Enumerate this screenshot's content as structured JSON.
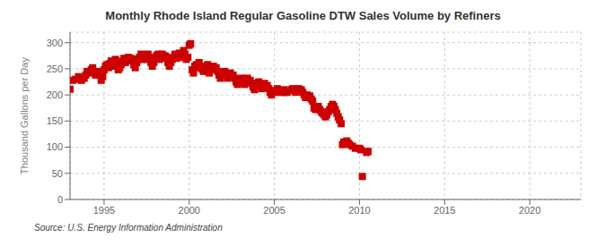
{
  "chart_data": {
    "type": "scatter",
    "title": "Monthly Rhode Island Regular Gasoline DTW Sales Volume by Refiners",
    "ylabel": "Thousand Gallons per Day",
    "annotations": [
      "Source: U.S. Energy Information Administration"
    ],
    "color": "#cc0000",
    "marker": "square",
    "grid": true,
    "xlim": [
      1993.0,
      2023.0
    ],
    "ylim": [
      0,
      320
    ],
    "xticks": [
      1995,
      2000,
      2005,
      2010,
      2015,
      2020
    ],
    "yticks": [
      0,
      50,
      100,
      150,
      200,
      250,
      300
    ],
    "x": [
      1993.0,
      1993.17,
      1993.33,
      1993.5,
      1993.67,
      1993.83,
      1993.92,
      1994.0,
      1994.17,
      1994.25,
      1994.33,
      1994.5,
      1994.67,
      1994.75,
      1994.83,
      1994.92,
      1995.0,
      1995.08,
      1995.17,
      1995.25,
      1995.33,
      1995.42,
      1995.5,
      1995.58,
      1995.67,
      1995.75,
      1995.83,
      1995.92,
      1996.0,
      1996.08,
      1996.17,
      1996.25,
      1996.33,
      1996.42,
      1996.5,
      1996.58,
      1996.67,
      1996.75,
      1996.83,
      1996.92,
      1997.0,
      1997.08,
      1997.17,
      1997.25,
      1997.33,
      1997.42,
      1997.5,
      1997.58,
      1997.67,
      1997.75,
      1997.83,
      1997.92,
      1998.0,
      1998.08,
      1998.17,
      1998.25,
      1998.33,
      1998.42,
      1998.5,
      1998.58,
      1998.67,
      1998.75,
      1998.83,
      1998.92,
      1999.0,
      1999.08,
      1999.17,
      1999.25,
      1999.33,
      1999.42,
      1999.5,
      1999.58,
      1999.67,
      1999.75,
      1999.83,
      1999.92,
      2000.0,
      2000.08,
      2000.17,
      2000.25,
      2000.33,
      2000.42,
      2000.5,
      2000.58,
      2000.67,
      2000.75,
      2000.83,
      2000.92,
      2001.0,
      2001.08,
      2001.17,
      2001.25,
      2001.33,
      2001.42,
      2001.5,
      2001.58,
      2001.67,
      2001.75,
      2001.83,
      2001.92,
      2002.0,
      2002.08,
      2002.17,
      2002.25,
      2002.33,
      2002.42,
      2002.5,
      2002.58,
      2002.67,
      2002.75,
      2002.83,
      2002.92,
      2003.0,
      2003.08,
      2003.17,
      2003.25,
      2003.33,
      2003.42,
      2003.5,
      2003.58,
      2003.67,
      2003.75,
      2003.83,
      2003.92,
      2004.0,
      2004.08,
      2004.17,
      2004.25,
      2004.33,
      2004.42,
      2004.5,
      2004.58,
      2004.67,
      2004.75,
      2004.83,
      2004.92,
      2005.0,
      2005.08,
      2005.17,
      2005.25,
      2005.33,
      2005.42,
      2005.5,
      2005.58,
      2005.67,
      2005.75,
      2006.0,
      2006.08,
      2006.17,
      2006.25,
      2006.33,
      2006.42,
      2006.5,
      2006.58,
      2006.67,
      2006.75,
      2006.83,
      2006.92,
      2007.0,
      2007.08,
      2007.17,
      2007.25,
      2007.33,
      2007.42,
      2007.5,
      2007.58,
      2007.67,
      2007.75,
      2007.83,
      2007.92,
      2008.0,
      2008.08,
      2008.17,
      2008.25,
      2008.33,
      2008.42,
      2008.5,
      2008.58,
      2008.67,
      2008.75,
      2008.83,
      2008.92,
      2009.0,
      2009.08,
      2009.17,
      2009.25,
      2009.33,
      2009.42,
      2009.58,
      2009.75,
      2010.0,
      2010.08,
      2010.17,
      2010.42,
      2010.5
    ],
    "values": [
      211,
      228,
      230,
      235,
      228,
      232,
      238,
      245,
      242,
      248,
      252,
      238,
      245,
      240,
      228,
      235,
      248,
      255,
      258,
      252,
      260,
      265,
      255,
      262,
      268,
      260,
      248,
      252,
      258,
      265,
      270,
      262,
      268,
      272,
      265,
      270,
      268,
      258,
      252,
      262,
      268,
      272,
      278,
      268,
      272,
      275,
      268,
      278,
      272,
      262,
      255,
      262,
      270,
      275,
      278,
      268,
      272,
      278,
      270,
      275,
      272,
      262,
      255,
      262,
      268,
      272,
      278,
      270,
      275,
      280,
      272,
      278,
      285,
      278,
      268,
      272,
      295,
      298,
      248,
      242,
      255,
      258,
      252,
      262,
      255,
      250,
      245,
      250,
      255,
      258,
      242,
      248,
      252,
      255,
      248,
      252,
      245,
      238,
      232,
      238,
      242,
      245,
      238,
      232,
      238,
      242,
      235,
      238,
      232,
      225,
      220,
      225,
      230,
      232,
      225,
      220,
      228,
      232,
      225,
      228,
      222,
      215,
      210,
      218,
      222,
      225,
      218,
      212,
      218,
      222,
      215,
      218,
      212,
      205,
      200,
      208,
      205,
      208,
      212,
      208,
      205,
      208,
      205,
      210,
      205,
      205,
      210,
      212,
      208,
      205,
      210,
      212,
      208,
      210,
      205,
      200,
      195,
      200,
      195,
      198,
      192,
      188,
      175,
      172,
      175,
      178,
      172,
      168,
      165,
      162,
      158,
      162,
      168,
      172,
      178,
      182,
      178,
      172,
      165,
      158,
      152,
      145,
      105,
      110,
      108,
      112,
      108,
      105,
      102,
      98,
      98,
      95,
      44,
      90,
      92
    ]
  }
}
